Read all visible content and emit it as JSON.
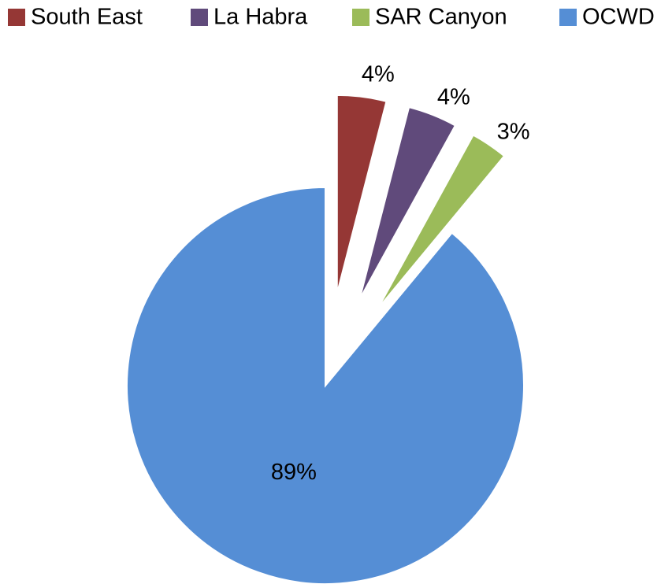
{
  "chart_data": {
    "type": "pie",
    "categories": [
      "South East",
      "La Habra",
      "SAR Canyon",
      "OCWD"
    ],
    "values": [
      4,
      4,
      3,
      89
    ],
    "value_labels": [
      "4%",
      "4%",
      "3%",
      "89%"
    ],
    "colors": [
      "#953735",
      "#604a7b",
      "#9bbb59",
      "#558ed5"
    ],
    "explode": [
      true,
      true,
      true,
      false
    ],
    "legend": "top"
  }
}
